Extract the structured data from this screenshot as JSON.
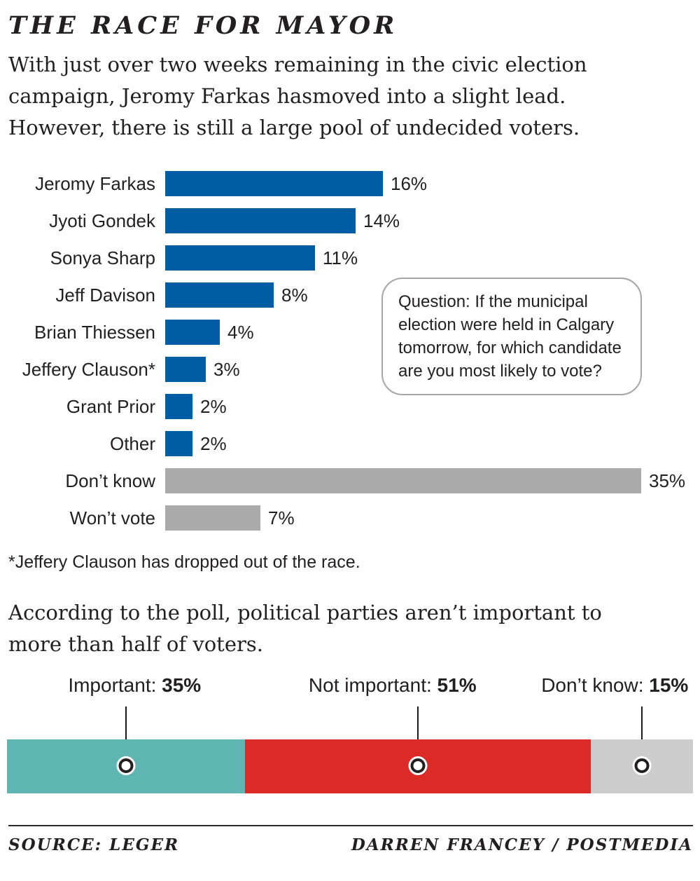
{
  "title": "THE RACE FOR MAYOR",
  "intro": "With just over two weeks remaining in the civic election\ncampaign, Jeromy Farkas hasmoved into a slight lead.\nHowever, there is still a large pool of undecided voters.",
  "question_box": "Question: If the municipal\nelection were held in Calgary\ntomorrow, for which candidate\nare you most likely to vote?",
  "footnote": "*Jeffery Clauson has dropped out of the race.",
  "section2_intro": "According to the poll, political parties aren’t important to\nmore than half of voters.",
  "footer": {
    "source": "SOURCE: LEGER",
    "credit": "DARREN FRANCEY / POSTMEDIA"
  },
  "colors": {
    "candidate_bar_blue": "#005da4",
    "undecided_bar_gray": "#ababab",
    "important_teal": "#5fb5b1",
    "not_important_red": "#dc2b27",
    "dont_know_gray": "#cdcdcd",
    "text": "#231f20"
  },
  "chart_data": [
    {
      "type": "bar",
      "orientation": "horizontal",
      "xlim": [
        0,
        35
      ],
      "grid": false,
      "categories": [
        "Jeromy Farkas",
        "Jyoti Gondek",
        "Sonya Sharp",
        "Jeff Davison",
        "Brian Thiessen",
        "Jeffery Clauson*",
        "Grant Prior",
        "Other",
        "Don’t know",
        "Won’t vote"
      ],
      "values": [
        16,
        14,
        11,
        8,
        4,
        3,
        2,
        2,
        35,
        7
      ],
      "value_labels": [
        "16%",
        "14%",
        "11%",
        "8%",
        "4%",
        "3%",
        "2%",
        "2%",
        "35%",
        "7%"
      ],
      "bar_colors": [
        "#005da4",
        "#005da4",
        "#005da4",
        "#005da4",
        "#005da4",
        "#005da4",
        "#005da4",
        "#005da4",
        "#ababab",
        "#ababab"
      ]
    },
    {
      "type": "stacked-bar",
      "total": 101,
      "segments": [
        {
          "label": "Important",
          "caption_prefix": "Important: ",
          "caption_value": "35%",
          "value": 35,
          "color": "#5fb5b1"
        },
        {
          "label": "Not important",
          "caption_prefix": "Not important: ",
          "caption_value": "51%",
          "value": 51,
          "color": "#dc2b27"
        },
        {
          "label": "Don’t know",
          "caption_prefix": "Don’t know: ",
          "caption_value": "15%",
          "value": 15,
          "color": "#cdcdcd"
        }
      ]
    }
  ]
}
